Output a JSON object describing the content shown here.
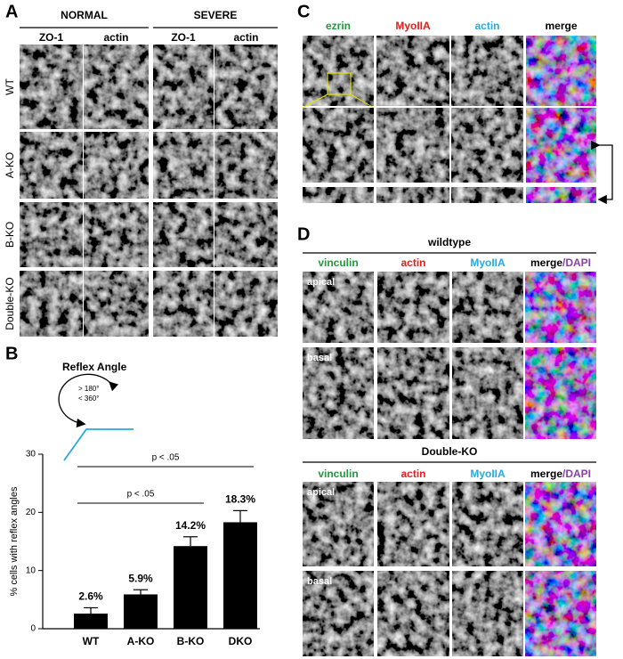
{
  "panel_a": {
    "label": "A",
    "groups": [
      "NORMAL",
      "SEVERE"
    ],
    "columns": [
      "ZO-1",
      "actin",
      "ZO-1",
      "actin"
    ],
    "rows": [
      "WT",
      "A-KO",
      "B-KO",
      "Double-KO"
    ]
  },
  "chart_data": {
    "type": "bar",
    "panel_label": "B",
    "inset": {
      "title": "Reflex Angle",
      "labels": [
        "> 180°",
        "< 360°"
      ],
      "color": "#29a8e0"
    },
    "y_label": "% cells with reflex angles",
    "categories": [
      "WT",
      "A-KO",
      "B-KO",
      "DKO"
    ],
    "values": [
      2.6,
      5.9,
      14.2,
      18.3
    ],
    "value_labels": [
      "2.6%",
      "5.9%",
      "14.2%",
      "18.3%"
    ],
    "errors": [
      1.0,
      0.8,
      1.6,
      2.0
    ],
    "color": "#000000",
    "ylim": [
      0,
      30
    ],
    "yticks": [
      0,
      10,
      20,
      30
    ],
    "significance": [
      {
        "from": "WT",
        "to": "B-KO",
        "label": "p < .05"
      },
      {
        "from": "WT",
        "to": "DKO",
        "label": "p < .05"
      }
    ]
  },
  "panel_c": {
    "label": "C",
    "columns": [
      "ezrin",
      "MyoIIA",
      "actin",
      "merge"
    ],
    "colors": [
      "#1e9a3c",
      "#e0201b",
      "#29a8e0",
      "#000000"
    ]
  },
  "panel_d": {
    "label": "D",
    "sections": [
      {
        "title": "wildtype",
        "columns": [
          "vinculin",
          "actin",
          "MyoIIA",
          [
            "merge",
            "/DAPI"
          ]
        ],
        "rows": [
          "apical",
          "basal"
        ]
      },
      {
        "title": "Double-KO",
        "columns": [
          "vinculin",
          "actin",
          "MyoIIA",
          [
            "merge",
            "/DAPI"
          ]
        ],
        "rows": [
          "apical",
          "basal"
        ]
      }
    ],
    "colors": [
      "#1e9a3c",
      "#e0201b",
      "#29a8e0",
      "#000000",
      "#8b3fa8"
    ]
  }
}
